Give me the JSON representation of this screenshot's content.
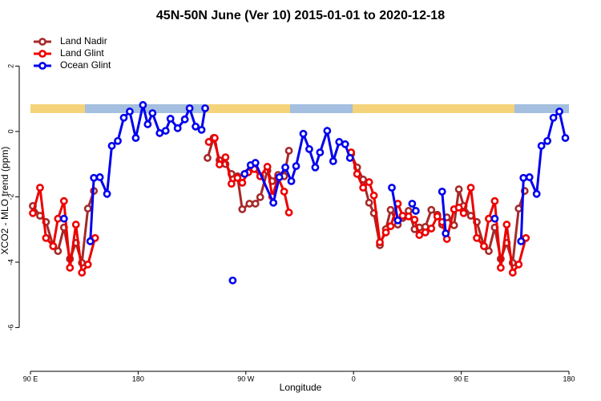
{
  "chart_data": {
    "type": "line",
    "title": "45N-50N June (Ver 10)   2015-01-01 to 2020-12-18",
    "x_label": "Longitude",
    "y_label": "XCO2 - MLO trend (ppm)",
    "xlim": [
      90,
      540
    ],
    "ylim": [
      -7.07,
      3.09
    ],
    "xticks": [
      {
        "value": 90,
        "label": "90 E"
      },
      180,
      {
        "value": 270,
        "label": "90 W"
      },
      {
        "value": 360,
        "label": "0"
      },
      {
        "value": 450,
        "label": "90 E"
      },
      {
        "value": 540,
        "label": "180"
      }
    ],
    "yticks": [
      -6,
      -4,
      -2,
      0,
      2
    ],
    "legend": "top-left",
    "series": [
      {
        "name": "Land Nadir",
        "color": "#a52a2a",
        "x": [
          92,
          98,
          103,
          109,
          113,
          118,
          123,
          128,
          133,
          138,
          143,
          null,
          238,
          243,
          248,
          253,
          258,
          263,
          267,
          273,
          278,
          282,
          288,
          292,
          297,
          302,
          306,
          null,
          358,
          363,
          368,
          373,
          377,
          382,
          387,
          391,
          397,
          401,
          406,
          411,
          415,
          420,
          425,
          430,
          434,
          438,
          444,
          448,
          452,
          458,
          463,
          469,
          473,
          478,
          483,
          488,
          493,
          498,
          503
        ],
        "values": [
          -2.28,
          -2.58,
          -2.77,
          -3.51,
          -3.66,
          -2.94,
          -3.9,
          -3.41,
          -4.02,
          -2.36,
          -1.82,
          null,
          -0.81,
          -0.2,
          -0.88,
          -1.0,
          -1.3,
          -1.37,
          -2.38,
          -2.21,
          -2.21,
          -2.01,
          -1.2,
          -1.52,
          -1.33,
          -1.37,
          -0.59,
          null,
          -0.69,
          -1.1,
          -1.47,
          -2.18,
          -2.5,
          -3.48,
          -2.99,
          -2.4,
          -2.85,
          -2.65,
          -2.43,
          -2.99,
          -2.94,
          -2.92,
          -2.4,
          -2.55,
          -2.85,
          -2.63,
          -2.87,
          -1.77,
          -2.28,
          -2.58,
          -2.77,
          -3.51,
          -3.66,
          -2.94,
          -3.9,
          -3.41,
          -4.02,
          -2.36,
          -1.82
        ]
      },
      {
        "name": "Land Glint",
        "color": "#ee0000",
        "x": [
          92,
          98,
          103,
          109,
          113,
          118,
          123,
          128,
          133,
          138,
          144,
          null,
          239,
          244,
          248,
          253,
          258,
          263,
          267,
          272,
          277,
          282,
          288,
          292,
          297,
          302,
          306,
          null,
          358,
          363,
          368,
          373,
          377,
          382,
          387,
          391,
          397,
          401,
          406,
          411,
          415,
          420,
          425,
          430,
          434,
          438,
          444,
          448,
          452,
          458,
          463,
          469,
          473,
          478,
          483,
          488,
          493,
          498,
          504
        ],
        "values": [
          -2.5,
          -1.72,
          -3.26,
          -3.51,
          -2.67,
          -2.13,
          -4.17,
          -2.85,
          -4.32,
          -4.07,
          -3.26,
          null,
          -0.32,
          -0.2,
          -1.01,
          -0.79,
          -1.6,
          -1.42,
          -1.57,
          -1.25,
          -1.15,
          -1.37,
          -1.08,
          -1.99,
          -1.42,
          -1.84,
          -2.48,
          null,
          -0.64,
          -1.3,
          -1.72,
          -1.55,
          -1.96,
          -3.39,
          -3.09,
          -2.9,
          -2.21,
          -2.58,
          -2.6,
          -2.7,
          -3.17,
          -3.09,
          -2.97,
          -2.6,
          -2.77,
          -3.29,
          -2.38,
          -2.33,
          -2.5,
          -1.72,
          -3.26,
          -3.51,
          -2.67,
          -2.13,
          -4.17,
          -2.85,
          -4.32,
          -4.07,
          -3.26
        ]
      },
      {
        "name": "Ocean Glint",
        "color": "#0000ee",
        "x": [
          118,
          null,
          140,
          143,
          148,
          154,
          158,
          163,
          168,
          173,
          178,
          184,
          188,
          192,
          198,
          203,
          207,
          213,
          219,
          223,
          228,
          233,
          236,
          null,
          259,
          null,
          269,
          274,
          278,
          293,
          298,
          303,
          308,
          312,
          318,
          323,
          328,
          332,
          338,
          343,
          348,
          353,
          357,
          null,
          392,
          397,
          null,
          409,
          412,
          null,
          434,
          437,
          null,
          478,
          null,
          500,
          502,
          507,
          513,
          517,
          522,
          527,
          532,
          537
        ],
        "values": [
          -2.67,
          null,
          -3.36,
          -1.42,
          -1.4,
          -1.91,
          -0.44,
          -0.29,
          0.42,
          0.61,
          -0.2,
          0.81,
          0.22,
          0.56,
          -0.05,
          0.02,
          0.39,
          0.1,
          0.37,
          0.71,
          0.15,
          0.05,
          0.71,
          null,
          -4.56,
          null,
          -1.3,
          -1.03,
          -0.96,
          -2.18,
          -1.4,
          -1.1,
          -1.52,
          -1.06,
          -0.07,
          -0.54,
          -1.1,
          -0.64,
          0.02,
          -0.91,
          -0.32,
          -0.39,
          -0.81,
          null,
          -1.72,
          -2.72,
          null,
          -2.21,
          -2.43,
          null,
          -1.84,
          -3.12,
          null,
          -2.67,
          null,
          -3.36,
          -1.42,
          -1.4,
          -1.91,
          -0.44,
          -0.29,
          0.42,
          0.61,
          -0.2
        ]
      }
    ]
  }
}
